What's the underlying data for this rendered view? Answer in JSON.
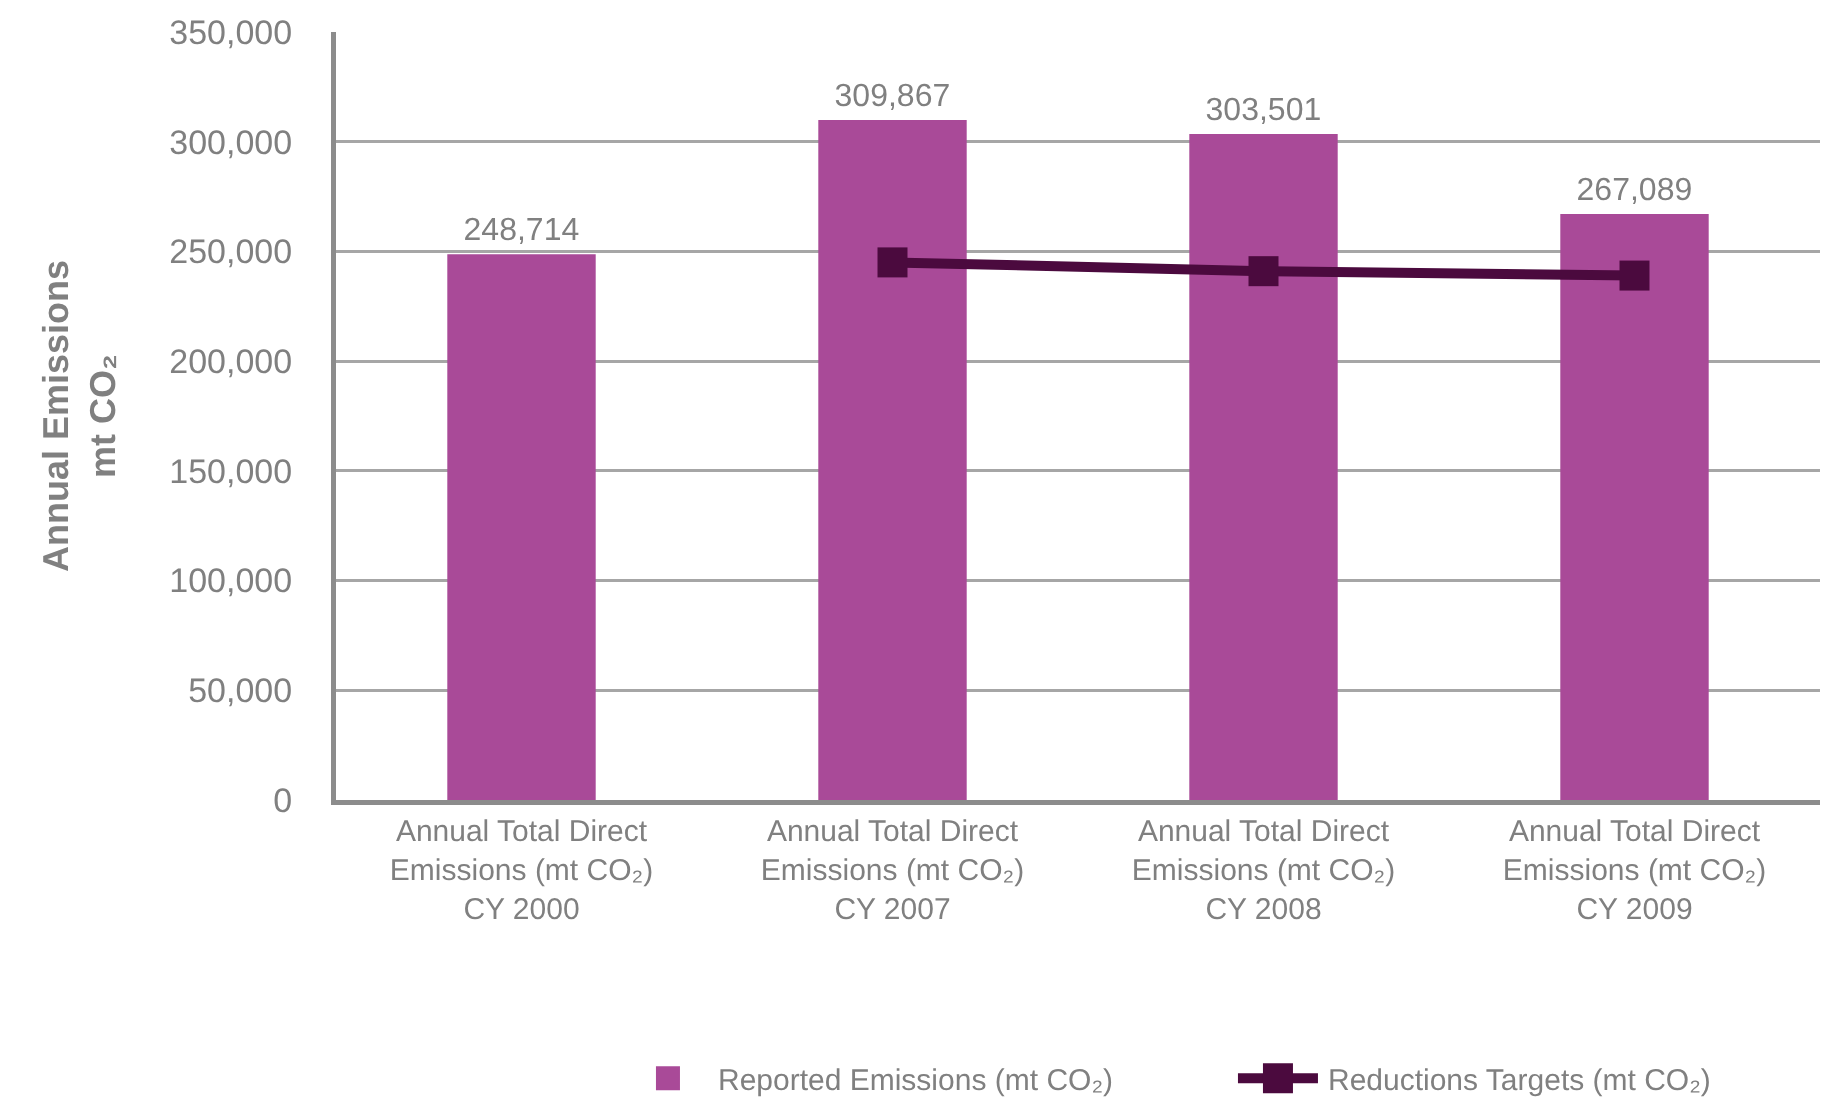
{
  "chart_data": {
    "type": "bar",
    "categories": [
      "Annual Total Direct\nEmissions (mt CO₂)\nCY 2000",
      "Annual Total Direct\nEmissions (mt CO₂)\nCY 2007",
      "Annual Total Direct\nEmissions (mt CO₂)\nCY 2008",
      "Annual Total Direct\nEmissions (mt CO₂)\nCY 2009"
    ],
    "series": [
      {
        "name": "Reported Emissions (mt CO₂)",
        "color": "#a94a98",
        "values": [
          248714,
          309867,
          303501,
          267089
        ],
        "value_labels": [
          "248,714",
          "309,867",
          "303,501",
          "267,089"
        ]
      },
      {
        "type": "line",
        "name": "Reductions Targets (mt CO₂)",
        "color": "#4b0a3e",
        "values": [
          null,
          245000,
          241000,
          239000
        ],
        "marker": "square",
        "line_style": "solid"
      }
    ],
    "ylabel": "Annual Emissions\nmt CO₂",
    "ylim": [
      0,
      350000
    ],
    "yticks": [
      {
        "value": 0,
        "label": "0"
      },
      {
        "value": 50000,
        "label": "50,000"
      },
      {
        "value": 100000,
        "label": "100,000"
      },
      {
        "value": 150000,
        "label": "150,000"
      },
      {
        "value": 200000,
        "label": "200,000"
      },
      {
        "value": 250000,
        "label": "250,000"
      },
      {
        "value": 300000,
        "label": "300,000"
      },
      {
        "value": 350000,
        "label": "350,000"
      }
    ],
    "grid": "y",
    "legend": "bottom"
  }
}
